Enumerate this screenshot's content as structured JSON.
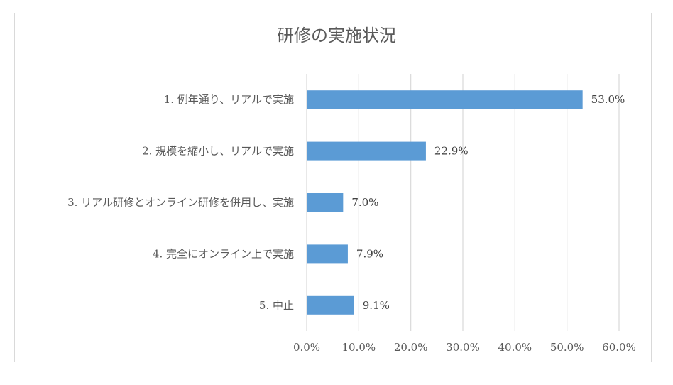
{
  "chart_data": {
    "type": "bar",
    "orientation": "horizontal",
    "title": "研修の実施状況",
    "categories": [
      "1. 例年通り、リアルで実施",
      "2. 規模を縮小し、リアルで実施",
      "3. リアル研修とオンライン研修を併用し、実施",
      "4. 完全にオンライン上で実施",
      "5. 中止"
    ],
    "values": [
      53.0,
      22.9,
      7.0,
      7.9,
      9.1
    ],
    "value_labels": [
      "53.0%",
      "22.9%",
      "7.0%",
      "7.9%",
      "9.1%"
    ],
    "xlim": [
      0,
      60
    ],
    "x_ticks": [
      "0.0%",
      "10.0%",
      "20.0%",
      "30.0%",
      "40.0%",
      "50.0%",
      "60.0%"
    ],
    "grid": true,
    "legend": "none",
    "bar_color": "#5b9bd5",
    "grid_color": "#d9d9d9"
  }
}
